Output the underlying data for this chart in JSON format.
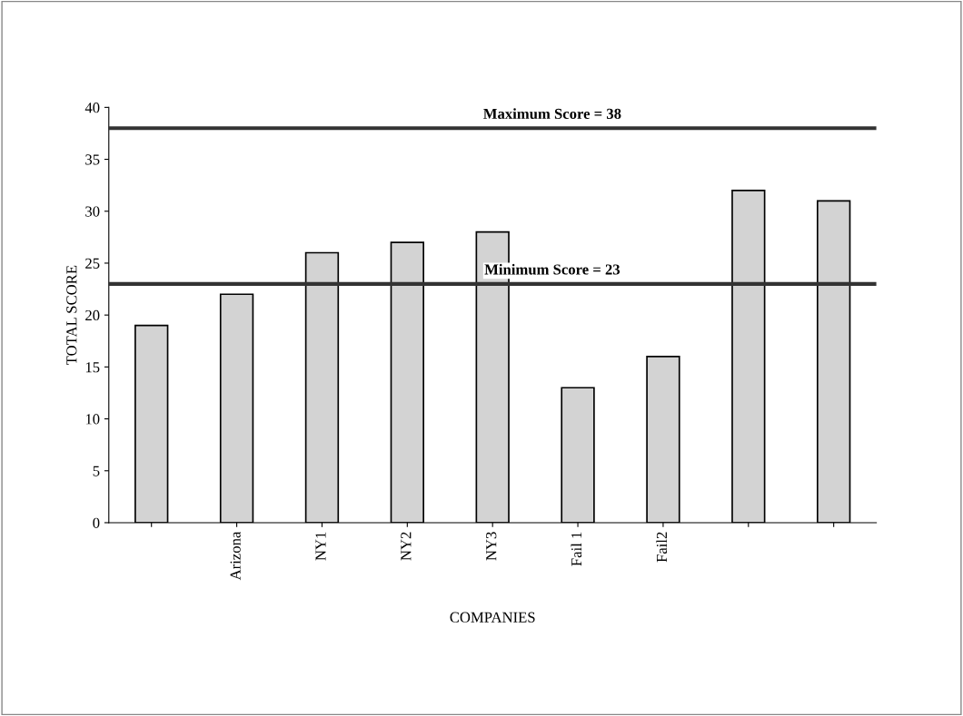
{
  "chart_data": {
    "type": "bar",
    "xlabel": "COMPANIES",
    "ylabel": "TOTAL SCORE",
    "categories": [
      null,
      "Arizona",
      "NY1",
      "NY2",
      "NY3",
      "Fail 1",
      "Fail2",
      null,
      null
    ],
    "values": [
      19,
      22,
      26,
      27,
      28,
      13,
      16,
      32,
      31
    ],
    "color": "#d3d3d3",
    "ylim": [
      0,
      40
    ],
    "yticks": [
      0,
      5,
      10,
      15,
      20,
      25,
      30,
      35,
      40
    ],
    "ref_lines": [
      {
        "axis": "y",
        "value": 38,
        "label": "Maximum Score = 38",
        "color": "#333333"
      },
      {
        "axis": "y",
        "value": 23,
        "label": "Minimum Score = 23",
        "color": "#333333"
      }
    ],
    "grid": false,
    "legend": false
  }
}
